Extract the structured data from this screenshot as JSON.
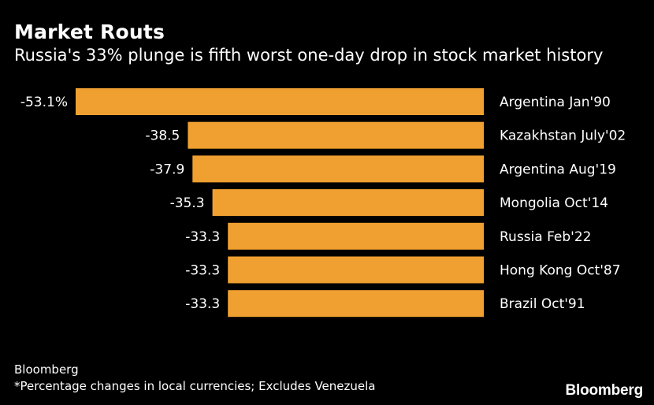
{
  "chart_data": {
    "type": "bar",
    "orientation": "horizontal",
    "title": "Market Routs",
    "subtitle": "Russia's 33% plunge is fifth worst one-day drop in stock market history",
    "categories": [
      "Argentina Jan'90",
      "Kazakhstan July'02",
      "Argentina Aug'19",
      "Mongolia Oct'14",
      "Russia Feb'22",
      "Hong Kong Oct'87",
      "Brazil Oct'91"
    ],
    "values": [
      -53.1,
      -38.5,
      -37.9,
      -35.3,
      -33.3,
      -33.3,
      -33.3
    ],
    "value_labels": [
      "-53.1%",
      "-38.5",
      "-37.9",
      "-35.3",
      "-33.3",
      "-33.3",
      "-33.3"
    ],
    "bar_color": "#f0a030",
    "xlim": [
      -53.1,
      0
    ],
    "xlabel": "",
    "ylabel": "",
    "grid": false
  },
  "footer": {
    "source": "Bloomberg",
    "note": "*Percentage changes in local currencies; Excludes Venezuela"
  },
  "branding": {
    "logo_text": "Bloomberg"
  },
  "colors": {
    "background": "#000000",
    "text": "#ffffff",
    "bar": "#f0a030"
  }
}
